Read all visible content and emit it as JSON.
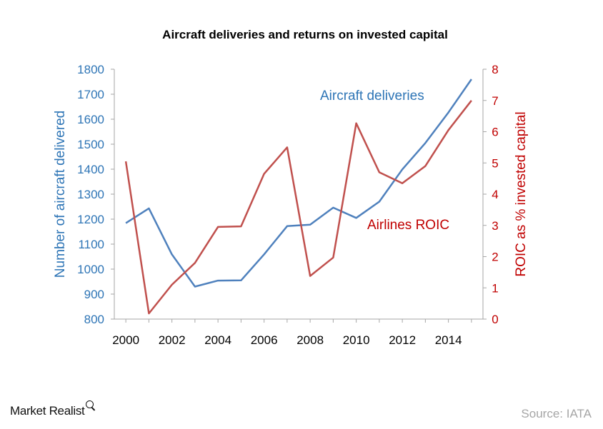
{
  "chart_data": {
    "type": "line",
    "title": "Aircraft deliveries and returns on invested capital",
    "x": [
      2000,
      2001,
      2002,
      2003,
      2004,
      2005,
      2006,
      2007,
      2008,
      2009,
      2010,
      2011,
      2012,
      2013,
      2014,
      2015
    ],
    "x_ticks": [
      "2000",
      "2002",
      "2004",
      "2006",
      "2008",
      "2010",
      "2012",
      "2014"
    ],
    "xlim": [
      1999.5,
      2015.5
    ],
    "y_left": {
      "label": "Number of aircraft delivered",
      "range": [
        800,
        1800
      ],
      "ticks": [
        "800",
        "900",
        "1000",
        "1100",
        "1200",
        "1300",
        "1400",
        "1500",
        "1600",
        "1700",
        "1800"
      ],
      "color": "#2e75b6"
    },
    "y_right": {
      "label": "ROIC as % invested capital",
      "range": [
        0,
        8
      ],
      "ticks": [
        "0",
        "1",
        "2",
        "3",
        "4",
        "5",
        "6",
        "7",
        "8"
      ],
      "color": "#c00000"
    },
    "grid": false,
    "series": [
      {
        "name": "Aircraft deliveries",
        "axis": "left",
        "color": "#4f81bd",
        "values": [
          1184,
          1243,
          1059,
          930,
          954,
          955,
          1059,
          1172,
          1178,
          1246,
          1205,
          1270,
          1399,
          1505,
          1627,
          1760
        ]
      },
      {
        "name": "Airlines ROIC",
        "axis": "right",
        "color": "#c0504d",
        "values": [
          5.05,
          0.18,
          1.1,
          1.8,
          2.95,
          2.97,
          4.65,
          5.5,
          1.38,
          1.97,
          6.27,
          4.7,
          4.35,
          4.9,
          6.05,
          7.0
        ]
      }
    ]
  },
  "footer": {
    "brand": "Market Realist",
    "brand_icon": "magnifier-icon",
    "source": "Source: IATA"
  }
}
